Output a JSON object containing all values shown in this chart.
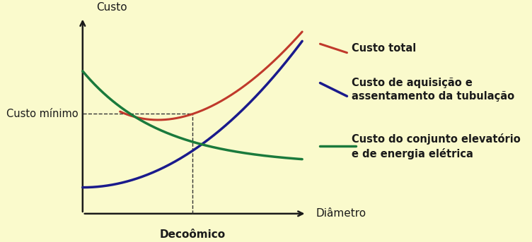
{
  "background_color": "#FAFACC",
  "axis_color": "#1a1a1a",
  "ylabel": "Custo",
  "xlabel": "Diâmetro",
  "decon_label": "Decoômico",
  "custo_minimo_label": "Custo mínimo",
  "label_total": "Custo total",
  "label_aquisicao": "Custo de aquisição e\nassentamento da tubulação",
  "label_conjunto": "Custo do conjunto elevatório\ne de energia elétrica",
  "color_total": "#c0392b",
  "color_aquisicao": "#1a1a8c",
  "color_conjunto": "#1a7a3c",
  "text_color": "#1a1a1a",
  "dashed_color": "#333333",
  "font_size": 10.5
}
